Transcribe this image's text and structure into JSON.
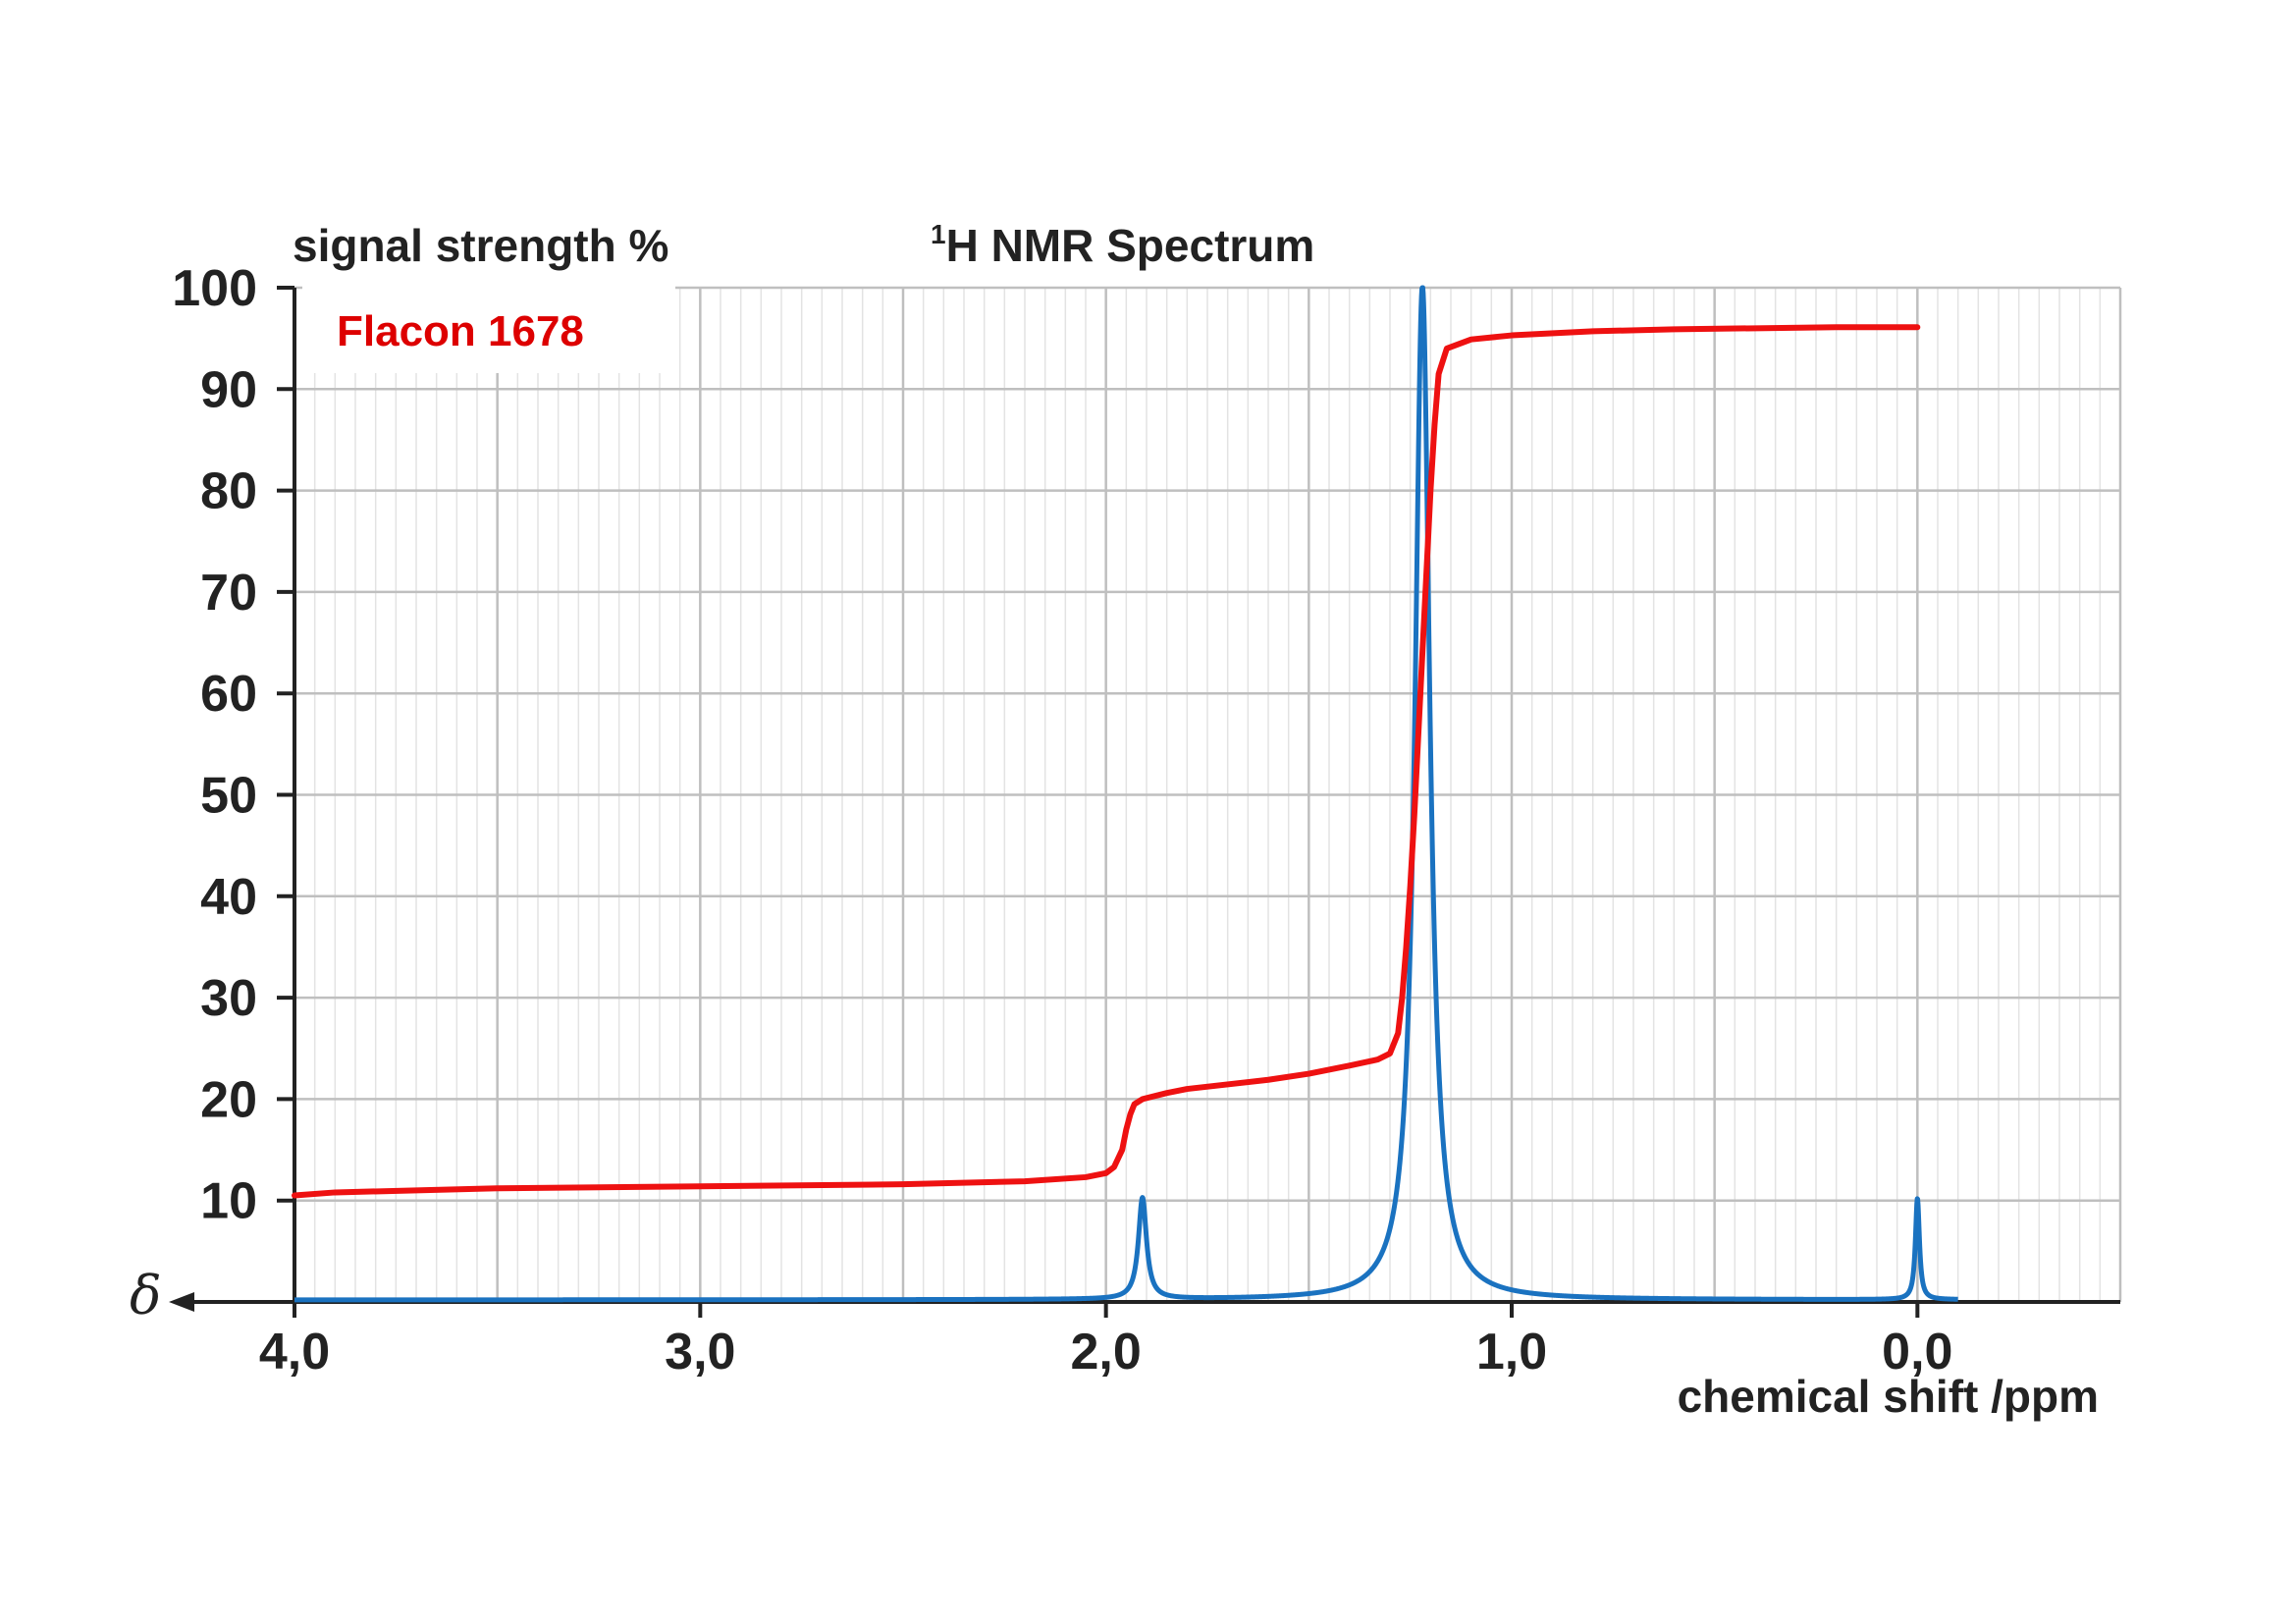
{
  "chart_data": {
    "type": "line",
    "title": "H NMR Spectrum",
    "title_superscript": "1",
    "ylabel": "signal strength %",
    "xlabel": "chemical shift /ppm",
    "x_axis_symbol": "δ",
    "legend_label": "Flacon 1678",
    "xlim": [
      4.0,
      -0.5
    ],
    "ylim": [
      0,
      100
    ],
    "x_reversed": true,
    "x_ticks": [
      4.0,
      3.0,
      2.0,
      1.0,
      0.0
    ],
    "x_tick_labels": [
      "4,0",
      "3,0",
      "2,0",
      "1,0",
      "0,0"
    ],
    "y_ticks": [
      10,
      20,
      30,
      40,
      50,
      60,
      70,
      80,
      90,
      100
    ],
    "y_tick_labels": [
      "10",
      "20",
      "30",
      "40",
      "50",
      "60",
      "70",
      "80",
      "90",
      "100"
    ],
    "grid": true,
    "grid_major_x_step": 0.5,
    "grid_minor_x_step": 0.05,
    "grid_y_step": 10,
    "colors": {
      "integral": "#ee1111",
      "spectrum": "#1a72c0",
      "legend_text": "#dd0000",
      "major_grid": "#bfbfbf",
      "minor_grid": "#e3e3e3",
      "axis": "#222222"
    },
    "series": [
      {
        "key": "spectrum",
        "peaks": [
          {
            "x": 1.91,
            "y": 10,
            "width": 0.012
          },
          {
            "x": 1.22,
            "y": 100,
            "width": 0.022
          },
          {
            "x": 0.0,
            "y": 10,
            "width": 0.006
          }
        ],
        "x_range": [
          4.0,
          -0.1
        ]
      },
      {
        "key": "integral",
        "x": [
          4.0,
          3.9,
          3.7,
          3.5,
          3.0,
          2.5,
          2.2,
          2.05,
          2.0,
          1.98,
          1.96,
          1.95,
          1.94,
          1.93,
          1.91,
          1.85,
          1.8,
          1.6,
          1.5,
          1.4,
          1.33,
          1.3,
          1.28,
          1.27,
          1.26,
          1.25,
          1.24,
          1.23,
          1.22,
          1.21,
          1.2,
          1.19,
          1.18,
          1.16,
          1.1,
          1.0,
          0.8,
          0.6,
          0.4,
          0.2,
          0.0
        ],
        "y": [
          10.5,
          10.8,
          11.0,
          11.2,
          11.4,
          11.6,
          11.9,
          12.3,
          12.7,
          13.3,
          15.0,
          17.0,
          18.5,
          19.5,
          20.0,
          20.6,
          21.0,
          21.9,
          22.5,
          23.3,
          23.9,
          24.5,
          26.5,
          30.0,
          35.0,
          41.0,
          48.0,
          56.0,
          64.0,
          72.0,
          80.0,
          86.5,
          91.5,
          94.0,
          94.9,
          95.3,
          95.7,
          95.9,
          96.0,
          96.1,
          96.1
        ]
      }
    ]
  }
}
